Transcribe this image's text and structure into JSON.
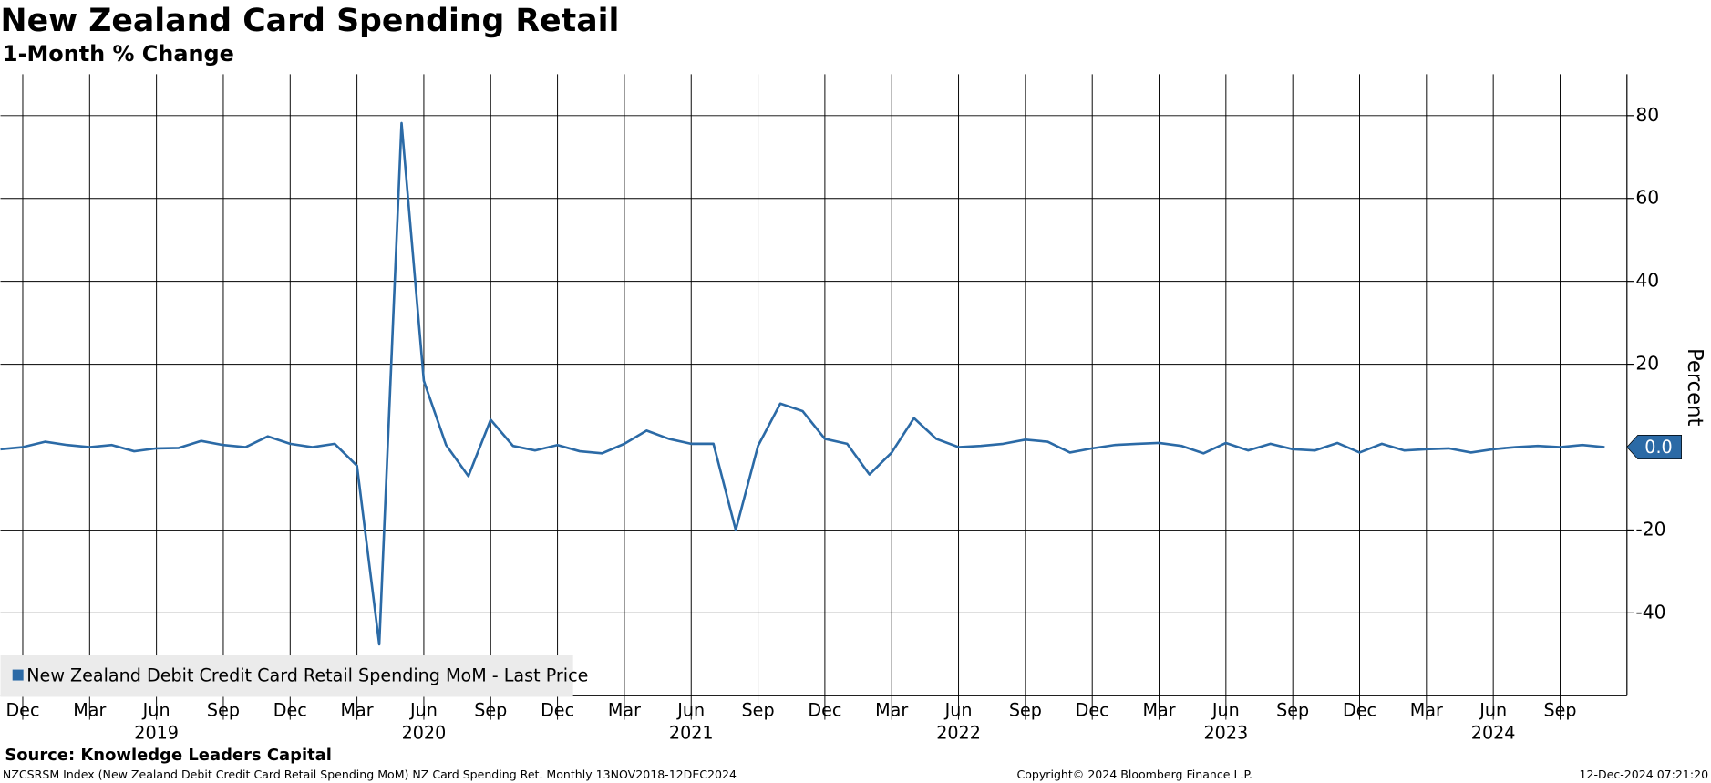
{
  "chart_data": {
    "type": "line",
    "title": "New Zealand Card Spending Retail",
    "subtitle": "1-Month % Change",
    "y_label": "Percent",
    "x": [
      "2018-11",
      "2018-12",
      "2019-01",
      "2019-02",
      "2019-03",
      "2019-04",
      "2019-05",
      "2019-06",
      "2019-07",
      "2019-08",
      "2019-09",
      "2019-10",
      "2019-11",
      "2019-12",
      "2020-01",
      "2020-02",
      "2020-03",
      "2020-04",
      "2020-05",
      "2020-06",
      "2020-07",
      "2020-08",
      "2020-09",
      "2020-10",
      "2020-11",
      "2020-12",
      "2021-01",
      "2021-02",
      "2021-03",
      "2021-04",
      "2021-05",
      "2021-06",
      "2021-07",
      "2021-08",
      "2021-09",
      "2021-10",
      "2021-11",
      "2021-12",
      "2022-01",
      "2022-02",
      "2022-03",
      "2022-04",
      "2022-05",
      "2022-06",
      "2022-07",
      "2022-08",
      "2022-09",
      "2022-10",
      "2022-11",
      "2022-12",
      "2023-01",
      "2023-02",
      "2023-03",
      "2023-04",
      "2023-05",
      "2023-06",
      "2023-07",
      "2023-08",
      "2023-09",
      "2023-10",
      "2023-11",
      "2023-12",
      "2024-01",
      "2024-02",
      "2024-03",
      "2024-04",
      "2024-05",
      "2024-06",
      "2024-07",
      "2024-08",
      "2024-09",
      "2024-10",
      "2024-11"
    ],
    "series": [
      {
        "name": "New Zealand Debit Credit Card Retail Spending MoM - Last Price",
        "color": "#2b6aa6",
        "values": [
          -0.5,
          0,
          1.3,
          0.5,
          0,
          0.5,
          -1,
          -0.3,
          -0.2,
          1.5,
          0.5,
          0,
          2.6,
          0.8,
          0,
          0.8,
          -4.5,
          -47.6,
          78.2,
          16,
          0.5,
          -7,
          6.6,
          0.3,
          -0.8,
          0.5,
          -1,
          -1.5,
          0.8,
          4,
          2,
          0.8,
          0.8,
          -20,
          0.3,
          10.5,
          8.7,
          2,
          0.8,
          -6.6,
          -1.3,
          7,
          2,
          0,
          0.3,
          0.8,
          1.8,
          1.3,
          -1.3,
          -0.3,
          0.5,
          0.8,
          1,
          0.3,
          -1.5,
          1,
          -0.8,
          0.8,
          -0.5,
          -0.8,
          1,
          -1.3,
          0.8,
          -0.8,
          -0.5,
          -0.3,
          -1.3,
          -0.5,
          0,
          0.3,
          0,
          0.5,
          0
        ],
        "value_labels": [
          null,
          null,
          null,
          null,
          null,
          null,
          null,
          null,
          null,
          null,
          null,
          null,
          null,
          null,
          null,
          null,
          null,
          null,
          null,
          null,
          null,
          null,
          null,
          null,
          null,
          null,
          null,
          null,
          null,
          null,
          null,
          null,
          null,
          null,
          null,
          null,
          null,
          null,
          null,
          null,
          null,
          null,
          null,
          null,
          null,
          null,
          null,
          null,
          null,
          null,
          null,
          null,
          null,
          null,
          null,
          null,
          null,
          null,
          null,
          null,
          null,
          null,
          null,
          null,
          null,
          null,
          null,
          null,
          null,
          null,
          null,
          null,
          "0.0"
        ]
      }
    ],
    "ylim": [
      -60,
      90
    ],
    "yticks": [
      -40,
      -20,
      20,
      40,
      60,
      80
    ],
    "xticks": [
      {
        "value": "2018-12",
        "label": "Dec"
      },
      {
        "value": "2019-03",
        "label": "Mar"
      },
      {
        "value": "2019-06",
        "label": "Jun"
      },
      {
        "value": "2019-09",
        "label": "Sep"
      },
      {
        "value": "2019-12",
        "label": "Dec"
      },
      {
        "value": "2020-03",
        "label": "Mar"
      },
      {
        "value": "2020-06",
        "label": "Jun"
      },
      {
        "value": "2020-09",
        "label": "Sep"
      },
      {
        "value": "2020-12",
        "label": "Dec"
      },
      {
        "value": "2021-03",
        "label": "Mar"
      },
      {
        "value": "2021-06",
        "label": "Jun"
      },
      {
        "value": "2021-09",
        "label": "Sep"
      },
      {
        "value": "2021-12",
        "label": "Dec"
      },
      {
        "value": "2022-03",
        "label": "Mar"
      },
      {
        "value": "2022-06",
        "label": "Jun"
      },
      {
        "value": "2022-09",
        "label": "Sep"
      },
      {
        "value": "2022-12",
        "label": "Dec"
      },
      {
        "value": "2023-03",
        "label": "Mar"
      },
      {
        "value": "2023-06",
        "label": "Jun"
      },
      {
        "value": "2023-09",
        "label": "Sep"
      },
      {
        "value": "2023-12",
        "label": "Dec"
      },
      {
        "value": "2024-03",
        "label": "Mar"
      },
      {
        "value": "2024-06",
        "label": "Jun"
      },
      {
        "value": "2024-09",
        "label": "Sep"
      }
    ],
    "year_labels": [
      2019,
      2020,
      2021,
      2022,
      2023,
      2024
    ],
    "grid": true,
    "legend": "lower left",
    "source": "Source: Knowledge Leaders Capital",
    "footer_left": "NZCSRSM Index (New Zealand Debit Credit Card Retail Spending MoM) NZ Card Spending Ret.  Monthly 13NOV2018-12DEC2024",
    "footer_center": "Copyright© 2024 Bloomberg Finance L.P.",
    "footer_right": "12-Dec-2024 07:21:20"
  }
}
